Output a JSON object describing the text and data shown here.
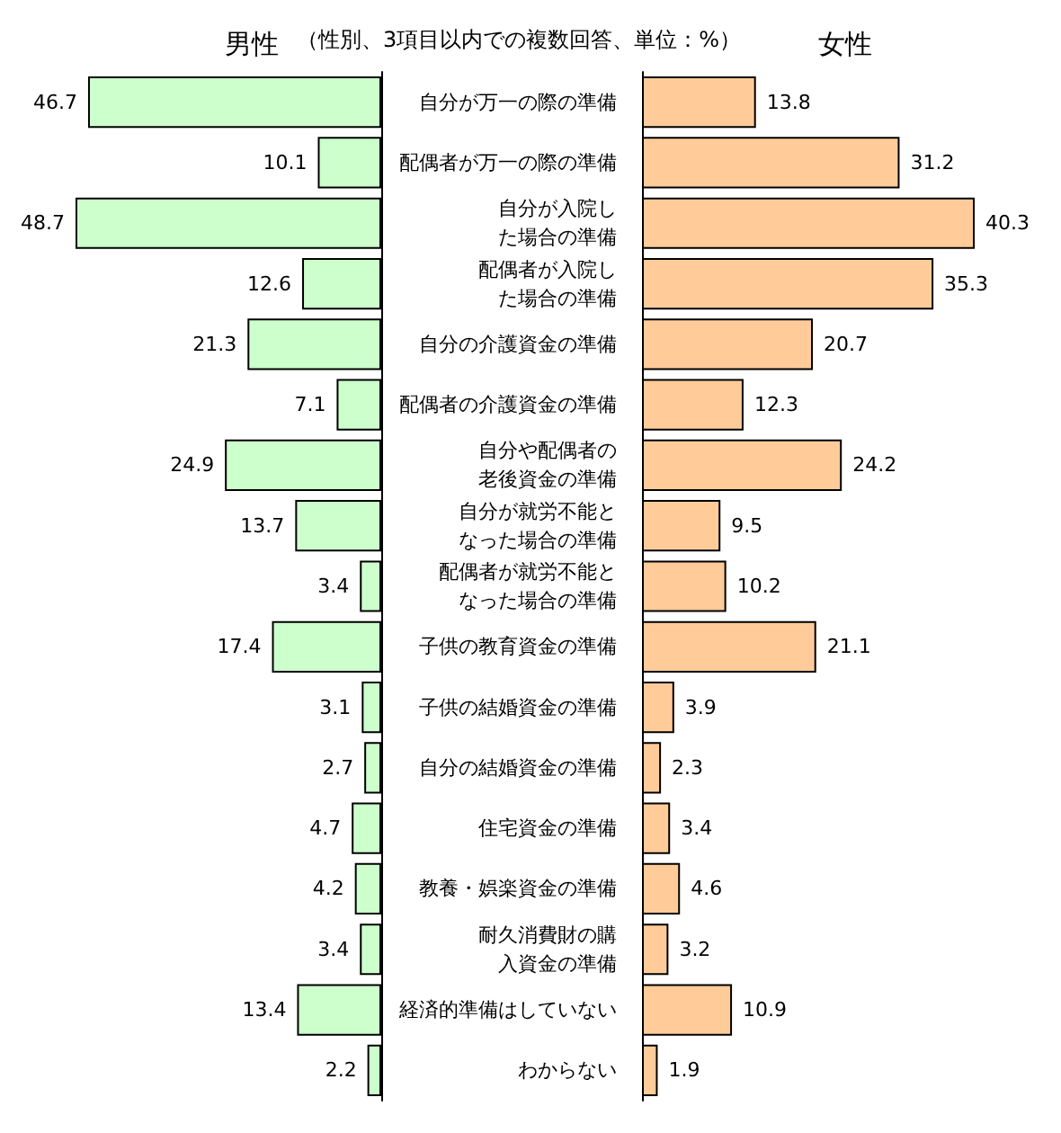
{
  "chart_data": [
    {
      "type": "bar",
      "orientation": "horizontal",
      "title": "男性",
      "annotations": [
        "（性別、3項目以内での複数回答、単位：%）"
      ],
      "categories": [
        "自分が万一の際の準備",
        "配偶者が万一の際の準備",
        "自分が入院した場合の準備",
        "配偶者が入院した場合の準備",
        "自分の介護資金の準備",
        "配偶者の介護資金の準備",
        "自分や配偶者の老後資金の準備",
        "自分が就労不能となった場合の準備",
        "配偶者が就労不能となった場合の準備",
        "子供の教育資金の準備",
        "子供の結婚資金の準備",
        "自分の結婚資金の準備",
        "住宅資金の準備",
        "教養・娯楽資金の準備",
        "耐久消費財の購入資金の準備",
        "経済的準備はしていない",
        "わからない"
      ],
      "values": [
        46.7,
        10.1,
        48.7,
        12.6,
        21.3,
        7.1,
        24.9,
        13.7,
        3.4,
        17.4,
        3.1,
        2.7,
        4.7,
        4.2,
        3.4,
        13.4,
        2.2
      ],
      "color": "#ccffcc",
      "data_labels": true,
      "tick_labels": false
    },
    {
      "type": "bar",
      "orientation": "horizontal",
      "title": "女性",
      "categories": [
        "自分が万一の際の準備",
        "配偶者が万一の際の準備",
        "自分が入院した場合の準備",
        "配偶者が入院した場合の準備",
        "自分の介護資金の準備",
        "配偶者の介護資金の準備",
        "自分や配偶者の老後資金の準備",
        "自分が就労不能となった場合の準備",
        "配偶者が就労不能となった場合の準備",
        "子供の教育資金の準備",
        "子供の結婚資金の準備",
        "自分の結婚資金の準備",
        "住宅資金の準備",
        "教養・娯楽資金の準備",
        "耐久消費財の購入資金の準備",
        "経済的準備はしていない",
        "わからない"
      ],
      "values": [
        13.8,
        31.2,
        40.3,
        35.3,
        20.7,
        12.3,
        24.2,
        9.5,
        10.2,
        21.1,
        3.9,
        2.3,
        3.4,
        4.6,
        3.2,
        10.9,
        1.9
      ],
      "color": "#ffcc99",
      "data_labels": true
    }
  ]
}
